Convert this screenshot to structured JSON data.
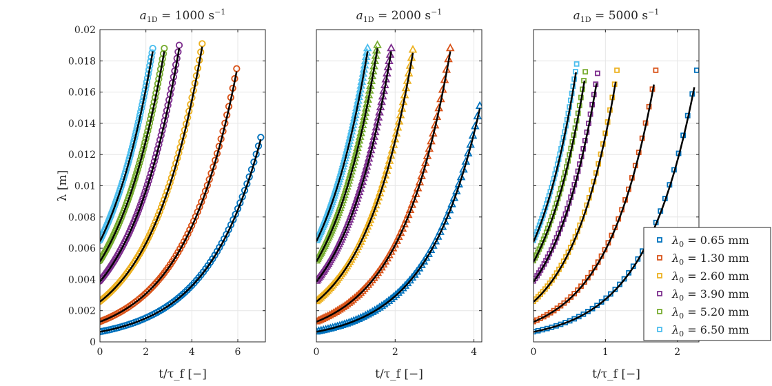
{
  "chart_data": [
    {
      "type": "scatter",
      "title": "a_1D = 1000 s^-1",
      "title_math": {
        "var": "a",
        "sub": "1D",
        "rest": " = 1000 s",
        "sup": "−1"
      },
      "xlabel": "t/τ_f [−]",
      "ylabel": "λ [m]",
      "xlim": [
        0,
        7.2
      ],
      "ylim": [
        0,
        0.02
      ],
      "xticks": [
        "0",
        "2",
        "4",
        "6"
      ],
      "xtick_values": [
        0,
        2,
        4,
        6
      ],
      "yticks": [
        "0",
        "0.002",
        "0.004",
        "0.006",
        "0.008",
        "0.01",
        "0.012",
        "0.014",
        "0.016",
        "0.018",
        "0.02"
      ],
      "ytick_values": [
        0,
        0.002,
        0.004,
        0.006,
        0.008,
        0.01,
        0.012,
        0.014,
        0.016,
        0.018,
        0.02
      ],
      "marker": "circle",
      "series": [
        {
          "name": "λ0 = 0.65 mm",
          "color": "#0072BD",
          "x_end": 7.0,
          "y_start": 0.00065,
          "y_end": 0.0131
        },
        {
          "name": "λ0 = 1.30 mm",
          "color": "#D95319",
          "x_end": 5.95,
          "y_start": 0.0013,
          "y_end": 0.0175
        },
        {
          "name": "λ0 = 2.60 mm",
          "color": "#EDB120",
          "x_end": 4.45,
          "y_start": 0.0026,
          "y_end": 0.0191
        },
        {
          "name": "λ0 = 3.90 mm",
          "color": "#7E2F8E",
          "x_end": 3.45,
          "y_start": 0.0039,
          "y_end": 0.019
        },
        {
          "name": "λ0 = 5.20 mm",
          "color": "#77AC30",
          "x_end": 2.8,
          "y_start": 0.0052,
          "y_end": 0.0188
        },
        {
          "name": "λ0 = 6.50 mm",
          "color": "#4DBEEE",
          "x_end": 2.3,
          "y_start": 0.0065,
          "y_end": 0.0188
        }
      ]
    },
    {
      "type": "scatter",
      "title": "a_1D = 2000 s^-1",
      "title_math": {
        "var": "a",
        "sub": "1D",
        "rest": " = 2000 s",
        "sup": "−1"
      },
      "xlabel": "t/τ_f [−]",
      "ylabel": "",
      "xlim": [
        0,
        4.2
      ],
      "ylim": [
        0,
        0.02
      ],
      "xticks": [
        "0",
        "2",
        "4"
      ],
      "xtick_values": [
        0,
        2,
        4
      ],
      "yticks": [],
      "ytick_values": [
        0,
        0.002,
        0.004,
        0.006,
        0.008,
        0.01,
        0.012,
        0.014,
        0.016,
        0.018,
        0.02
      ],
      "marker": "triangle",
      "series": [
        {
          "name": "λ0 = 0.65 mm",
          "color": "#0072BD",
          "x_end": 4.15,
          "y_start": 0.00065,
          "y_end": 0.0151
        },
        {
          "name": "λ0 = 1.30 mm",
          "color": "#D95319",
          "x_end": 3.4,
          "y_start": 0.0013,
          "y_end": 0.0188
        },
        {
          "name": "λ0 = 2.60 mm",
          "color": "#EDB120",
          "x_end": 2.45,
          "y_start": 0.0026,
          "y_end": 0.0187
        },
        {
          "name": "λ0 = 3.90 mm",
          "color": "#7E2F8E",
          "x_end": 1.9,
          "y_start": 0.0039,
          "y_end": 0.0188
        },
        {
          "name": "λ0 = 5.20 mm",
          "color": "#77AC30",
          "x_end": 1.55,
          "y_start": 0.0052,
          "y_end": 0.019
        },
        {
          "name": "λ0 = 6.50 mm",
          "color": "#4DBEEE",
          "x_end": 1.3,
          "y_start": 0.0065,
          "y_end": 0.0188
        }
      ]
    },
    {
      "type": "scatter",
      "title": "a_1D = 5000 s^-1",
      "title_math": {
        "var": "a",
        "sub": "1D",
        "rest": " = 5000 s",
        "sup": "−1"
      },
      "xlabel": "t/τ_f [−]",
      "ylabel": "",
      "xlim": [
        0,
        2.3
      ],
      "ylim": [
        0,
        0.02
      ],
      "xticks": [
        "0",
        "1",
        "2"
      ],
      "xtick_values": [
        0,
        1,
        2
      ],
      "yticks": [],
      "ytick_values": [
        0,
        0.002,
        0.004,
        0.006,
        0.008,
        0.01,
        0.012,
        0.014,
        0.016,
        0.018,
        0.02
      ],
      "marker": "square",
      "series": [
        {
          "name": "λ0 = 0.65 mm",
          "color": "#0072BD",
          "x_end": 2.27,
          "y_start": 0.00065,
          "y_end": 0.0174
        },
        {
          "name": "λ0 = 1.30 mm",
          "color": "#D95319",
          "x_end": 1.7,
          "y_start": 0.0013,
          "y_end": 0.0174
        },
        {
          "name": "λ0 = 2.60 mm",
          "color": "#EDB120",
          "x_end": 1.16,
          "y_start": 0.0026,
          "y_end": 0.0174
        },
        {
          "name": "λ0 = 3.90 mm",
          "color": "#7E2F8E",
          "x_end": 0.89,
          "y_start": 0.0039,
          "y_end": 0.0172
        },
        {
          "name": "λ0 = 5.20 mm",
          "color": "#77AC30",
          "x_end": 0.72,
          "y_start": 0.0052,
          "y_end": 0.0173
        },
        {
          "name": "λ0 = 6.50 mm",
          "color": "#4DBEEE",
          "x_end": 0.6,
          "y_start": 0.0065,
          "y_end": 0.0178
        }
      ]
    }
  ],
  "legend": {
    "location": "bottom-right of third panel",
    "entries": [
      {
        "label": "λ0 = 0.65 mm",
        "var": "λ",
        "sub": "0",
        "rest": " = 0.65 mm",
        "color": "#0072BD"
      },
      {
        "label": "λ0 = 1.30 mm",
        "var": "λ",
        "sub": "0",
        "rest": " = 1.30 mm",
        "color": "#D95319"
      },
      {
        "label": "λ0 = 2.60 mm",
        "var": "λ",
        "sub": "0",
        "rest": " = 2.60 mm",
        "color": "#EDB120"
      },
      {
        "label": "λ0 = 3.90 mm",
        "var": "λ",
        "sub": "0",
        "rest": " = 3.90 mm",
        "color": "#7E2F8E"
      },
      {
        "label": "λ0 = 5.20 mm",
        "var": "λ",
        "sub": "0",
        "rest": " = 5.20 mm",
        "color": "#77AC30"
      },
      {
        "label": "λ0 = 6.50 mm",
        "var": "λ",
        "sub": "0",
        "rest": " = 6.50 mm",
        "color": "#4DBEEE"
      }
    ]
  },
  "fit_line_color": "#000000"
}
